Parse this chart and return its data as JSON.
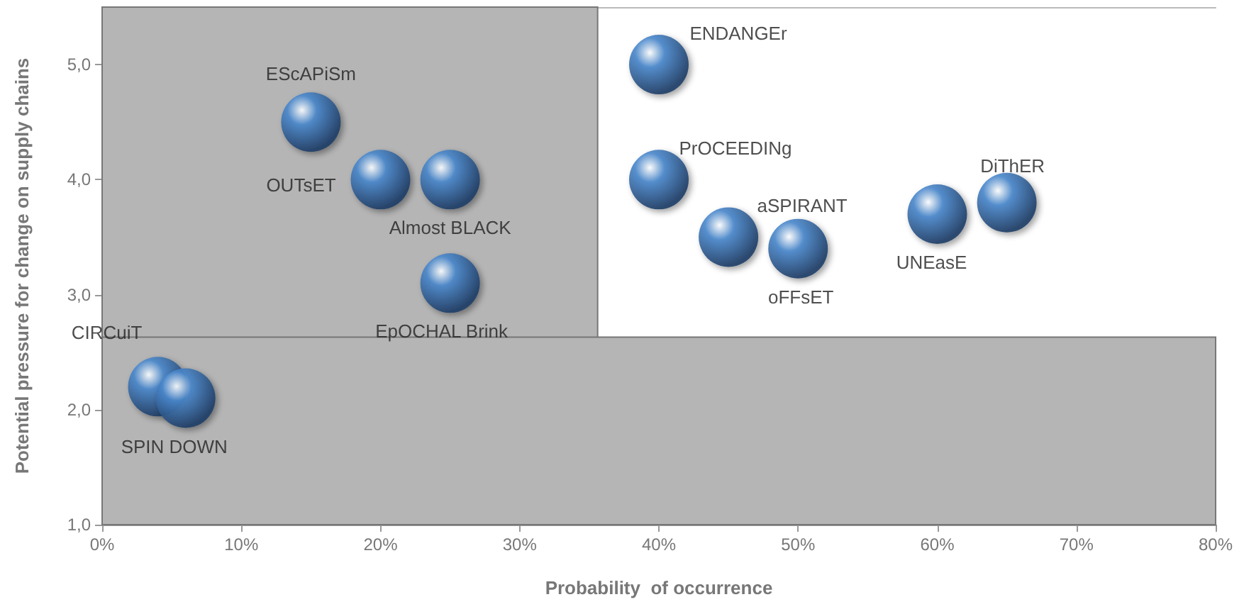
{
  "chart_data": {
    "type": "bubble",
    "xlabel": "Probability  of occurrence",
    "ylabel": "Potential pressure for change on supply chains",
    "x": [
      4,
      6,
      15,
      20,
      25,
      25,
      40,
      40,
      45,
      50,
      60,
      65
    ],
    "values": [
      2.2,
      2.1,
      4.5,
      4.0,
      4.0,
      3.1,
      5.0,
      4.0,
      3.5,
      3.4,
      3.7,
      3.8
    ],
    "sizes": [
      1,
      1,
      1,
      1,
      1,
      1,
      1,
      1,
      1,
      1,
      1,
      1
    ],
    "color": "#4a88cc",
    "xlim": [
      0,
      80
    ],
    "xticks": [
      {
        "value": 0,
        "label": "0%"
      },
      {
        "value": 10,
        "label": "10%"
      },
      {
        "value": 20,
        "label": "20%"
      },
      {
        "value": 30,
        "label": "30%"
      },
      {
        "value": 40,
        "label": "40%"
      },
      {
        "value": 50,
        "label": "50%"
      },
      {
        "value": 60,
        "label": "60%"
      },
      {
        "value": 70,
        "label": "70%"
      },
      {
        "value": 80,
        "label": "80%"
      }
    ],
    "ylim": [
      1,
      5.5
    ],
    "yticks": [
      {
        "value": 1,
        "label": "1,0"
      },
      {
        "value": 2,
        "label": "2,0"
      },
      {
        "value": 3,
        "label": "3,0"
      },
      {
        "value": 4,
        "label": "4,0"
      },
      {
        "value": 5,
        "label": "5,0"
      }
    ],
    "grid": false,
    "bands": [
      {
        "axis": "x",
        "from": 0,
        "to": 35.6,
        "color": "#b5b5b5"
      },
      {
        "axis": "y",
        "from": 1,
        "to": 2.63,
        "color": "#b5b5b5"
      }
    ],
    "annotations": [
      {
        "text": "CIRCuiT",
        "x": 4,
        "y": 2.2
      },
      {
        "text": "SPIN DOWN",
        "x": 6,
        "y": 2.1
      },
      {
        "text": "EScAPiSm",
        "x": 15,
        "y": 4.5
      },
      {
        "text": "OUTsET",
        "x": 20,
        "y": 4.0
      },
      {
        "text": "Almost BLACK",
        "x": 25,
        "y": 4.0
      },
      {
        "text": "EpOCHAL Brink",
        "x": 25,
        "y": 3.1
      },
      {
        "text": "ENDANGEr",
        "x": 40,
        "y": 5.0
      },
      {
        "text": "PrOCEEDINg",
        "x": 40,
        "y": 4.0
      },
      {
        "text": "aSPIRANT",
        "x": 45,
        "y": 3.5
      },
      {
        "text": "oFFsET",
        "x": 50,
        "y": 3.4
      },
      {
        "text": "UNEasE",
        "x": 60,
        "y": 3.7
      },
      {
        "text": "DiThER",
        "x": 65,
        "y": 3.8
      }
    ]
  }
}
